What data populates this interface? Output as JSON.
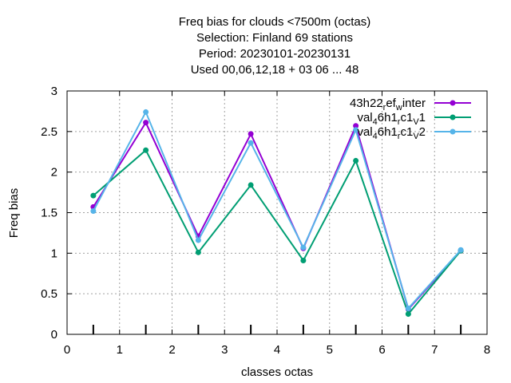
{
  "chart_data": {
    "type": "line",
    "title_lines": [
      "Freq bias  for clouds <7500m (octas)",
      "Selection: Finland     69 stations",
      "Period: 20230101-20230131",
      "Used  00,06,12,18  + 03 06 ... 48"
    ],
    "xlabel": "classes octas",
    "ylabel": "Freq bias",
    "xlim": [
      0,
      8
    ],
    "ylim": [
      0,
      3
    ],
    "xticks": [
      0,
      1,
      2,
      3,
      4,
      5,
      6,
      7,
      8
    ],
    "yticks": [
      0,
      0.5,
      1,
      1.5,
      2,
      2.5,
      3
    ],
    "xtick_labels": [
      "0",
      "1",
      "2",
      "3",
      "4",
      "5",
      "6",
      "7",
      "8"
    ],
    "ytick_labels": [
      "0",
      "0.5",
      "1",
      "1.5",
      "2",
      "2.5",
      "3"
    ],
    "grid": true,
    "legend_position": "top-right",
    "x": [
      0.5,
      1.5,
      2.5,
      3.5,
      4.5,
      5.5,
      6.5,
      7.5
    ],
    "series": [
      {
        "name": "43h22_ref_winter",
        "legend": {
          "base": "43h22",
          "sub1": "r",
          "mid": "ef",
          "sub2": "w",
          "tail": "inter"
        },
        "color": "#9400d3",
        "values": [
          1.57,
          2.61,
          1.21,
          2.47,
          1.06,
          2.57,
          0.31,
          1.03
        ]
      },
      {
        "name": "val_46h1_rc1_v1",
        "legend": {
          "base": "val",
          "sub1": "4",
          "mid": "6h1",
          "sub2": "r",
          "mid2": "c1",
          "sub3": "V",
          "tail": "1"
        },
        "color": "#009e73",
        "values": [
          1.71,
          2.27,
          1.01,
          1.84,
          0.91,
          2.14,
          0.25,
          1.03
        ]
      },
      {
        "name": "val_46h1_rc1_v2",
        "legend": {
          "base": "val",
          "sub1": "4",
          "mid": "6h1",
          "sub2": "r",
          "mid2": "c1",
          "sub3": "V",
          "tail": "2"
        },
        "color": "#56b4e9",
        "values": [
          1.52,
          2.74,
          1.16,
          2.36,
          1.07,
          2.52,
          0.32,
          1.04
        ]
      }
    ]
  }
}
